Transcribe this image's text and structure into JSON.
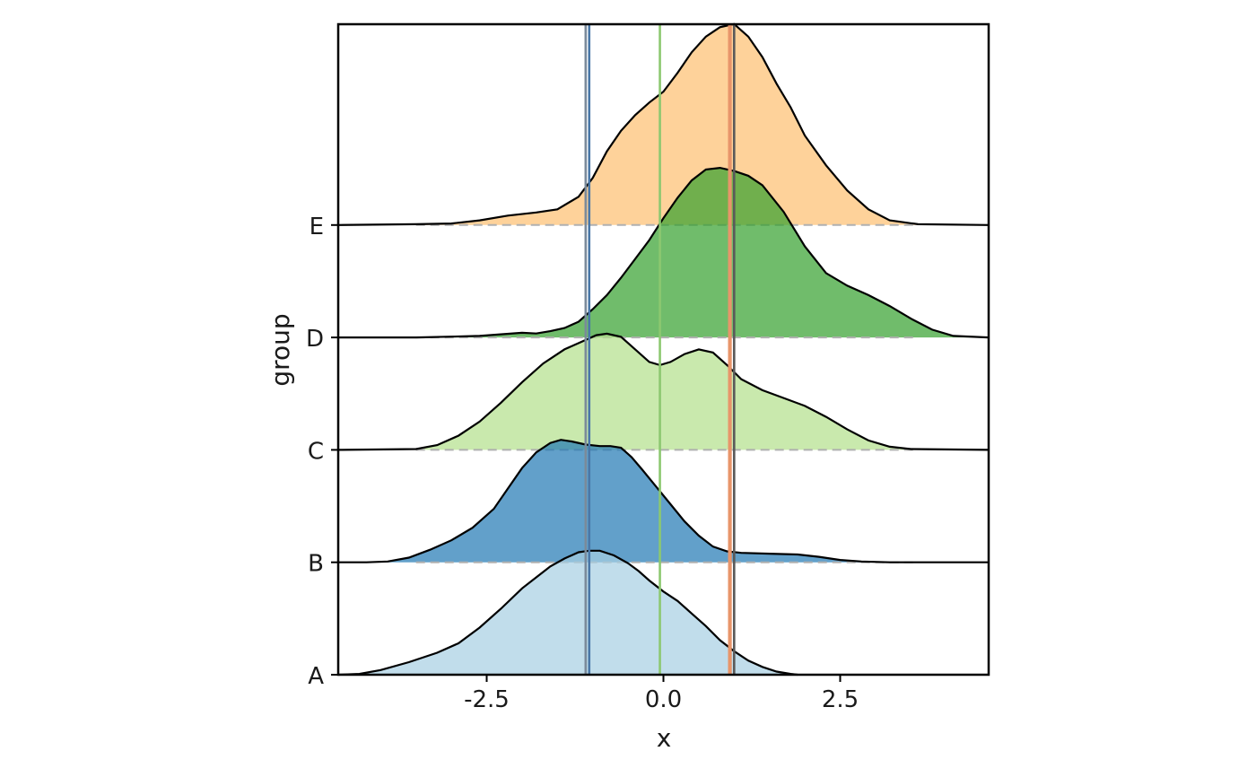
{
  "chart_data": {
    "type": "ridgeline",
    "xlabel": "x",
    "ylabel": "group",
    "xlim": [
      -4.6,
      4.6
    ],
    "x_ticks": [
      -2.5,
      0.0,
      2.5
    ],
    "x_tick_labels": [
      "-2.5",
      "0.0",
      "2.5"
    ],
    "groups": [
      "A",
      "B",
      "C",
      "D",
      "E"
    ],
    "grid": false,
    "legend": "none",
    "vertical_lines": [
      {
        "group": "A",
        "x": 1.0,
        "color": "#5a5a5a"
      },
      {
        "group": "A",
        "x": 0.95,
        "color": "#e8956a"
      },
      {
        "group": "B",
        "x": -1.05,
        "color": "#4a78a8"
      },
      {
        "group": "C",
        "x": -0.05,
        "color": "#8cc870"
      },
      {
        "group": "E",
        "x": 0.93,
        "color": "#e8956a"
      },
      {
        "group": "E",
        "x": -1.1,
        "color": "#7a8a9a"
      }
    ],
    "series": [
      {
        "name": "A",
        "color": "#a6cee3",
        "range": [
          -4.6,
          1.9
        ],
        "x": [
          -4.6,
          -4.3,
          -4.0,
          -3.6,
          -3.2,
          -2.9,
          -2.6,
          -2.3,
          -2.0,
          -1.8,
          -1.6,
          -1.4,
          -1.2,
          -1.05,
          -0.9,
          -0.7,
          -0.5,
          -0.35,
          -0.2,
          0.0,
          0.2,
          0.4,
          0.6,
          0.8,
          1.0,
          1.2,
          1.4,
          1.6,
          1.8,
          1.9
        ],
        "y": [
          0.0,
          0.005,
          0.03,
          0.08,
          0.14,
          0.2,
          0.3,
          0.42,
          0.55,
          0.62,
          0.69,
          0.74,
          0.78,
          0.79,
          0.79,
          0.76,
          0.71,
          0.66,
          0.6,
          0.53,
          0.47,
          0.39,
          0.31,
          0.22,
          0.15,
          0.09,
          0.05,
          0.02,
          0.005,
          0.0
        ]
      },
      {
        "name": "B",
        "color": "#1f78b4",
        "range": [
          -4.6,
          4.6
        ],
        "x": [
          -4.6,
          -4.2,
          -3.9,
          -3.6,
          -3.3,
          -3.0,
          -2.7,
          -2.4,
          -2.2,
          -2.0,
          -1.8,
          -1.6,
          -1.45,
          -1.3,
          -1.1,
          -0.9,
          -0.75,
          -0.6,
          -0.45,
          -0.3,
          -0.1,
          0.1,
          0.3,
          0.5,
          0.7,
          0.9,
          1.1,
          1.5,
          1.9,
          2.2,
          2.5,
          2.8,
          3.2,
          4.6
        ],
        "y": [
          0.0,
          0.0,
          0.005,
          0.03,
          0.08,
          0.14,
          0.22,
          0.34,
          0.47,
          0.6,
          0.7,
          0.76,
          0.78,
          0.77,
          0.75,
          0.74,
          0.74,
          0.73,
          0.67,
          0.59,
          0.48,
          0.37,
          0.26,
          0.17,
          0.1,
          0.07,
          0.06,
          0.055,
          0.05,
          0.035,
          0.015,
          0.005,
          0.0,
          0.0
        ]
      },
      {
        "name": "C",
        "color": "#b2df8a",
        "range": [
          -4.6,
          4.6
        ],
        "x": [
          -4.6,
          -3.5,
          -3.2,
          -2.9,
          -2.6,
          -2.3,
          -2.0,
          -1.7,
          -1.4,
          -1.1,
          -0.95,
          -0.8,
          -0.6,
          -0.4,
          -0.2,
          -0.05,
          0.1,
          0.3,
          0.5,
          0.7,
          0.9,
          1.1,
          1.4,
          1.7,
          2.0,
          2.3,
          2.6,
          2.9,
          3.2,
          3.5,
          4.6
        ],
        "y": [
          0.0,
          0.005,
          0.03,
          0.09,
          0.18,
          0.3,
          0.43,
          0.55,
          0.64,
          0.7,
          0.73,
          0.74,
          0.72,
          0.64,
          0.56,
          0.54,
          0.56,
          0.61,
          0.64,
          0.62,
          0.54,
          0.45,
          0.38,
          0.33,
          0.28,
          0.21,
          0.13,
          0.06,
          0.02,
          0.005,
          0.0
        ]
      },
      {
        "name": "D",
        "color": "#33a02c",
        "range": [
          -4.6,
          4.6
        ],
        "x": [
          -4.6,
          -3.5,
          -3.0,
          -2.6,
          -2.3,
          -2.0,
          -1.8,
          -1.6,
          -1.4,
          -1.2,
          -1.0,
          -0.8,
          -0.6,
          -0.4,
          -0.2,
          0.0,
          0.2,
          0.4,
          0.6,
          0.8,
          1.0,
          1.2,
          1.4,
          1.7,
          2.0,
          2.3,
          2.6,
          2.9,
          3.2,
          3.5,
          3.8,
          4.1,
          4.6
        ],
        "y": [
          0.0,
          0.0,
          0.005,
          0.01,
          0.02,
          0.03,
          0.025,
          0.04,
          0.06,
          0.1,
          0.18,
          0.27,
          0.38,
          0.5,
          0.62,
          0.76,
          0.89,
          1.0,
          1.07,
          1.08,
          1.06,
          1.03,
          0.97,
          0.8,
          0.58,
          0.41,
          0.33,
          0.27,
          0.2,
          0.12,
          0.05,
          0.01,
          0.0
        ]
      },
      {
        "name": "E",
        "color": "#fdbf6f",
        "range": [
          -4.6,
          4.6
        ],
        "x": [
          -4.6,
          -3.5,
          -3.0,
          -2.6,
          -2.2,
          -1.8,
          -1.5,
          -1.2,
          -1.0,
          -0.8,
          -0.6,
          -0.4,
          -0.2,
          0.0,
          0.2,
          0.4,
          0.6,
          0.8,
          1.0,
          1.2,
          1.4,
          1.6,
          1.8,
          2.0,
          2.3,
          2.6,
          2.9,
          3.2,
          3.6,
          4.6
        ],
        "y": [
          0.0,
          0.005,
          0.01,
          0.03,
          0.06,
          0.08,
          0.1,
          0.18,
          0.3,
          0.47,
          0.6,
          0.7,
          0.78,
          0.85,
          0.97,
          1.1,
          1.2,
          1.26,
          1.28,
          1.2,
          1.07,
          0.9,
          0.75,
          0.57,
          0.38,
          0.22,
          0.1,
          0.03,
          0.005,
          0.0
        ]
      }
    ]
  }
}
